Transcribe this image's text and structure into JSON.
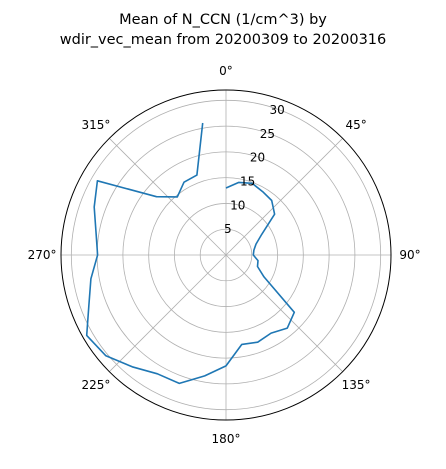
{
  "chart_data": {
    "type": "line",
    "projection": "polar",
    "title_lines": [
      "Mean of N_CCN (1/cm^3) by",
      "wdir_vec_mean from 20200309 to 20200316"
    ],
    "theta_direction": "clockwise",
    "theta_zero_location": "N",
    "theta_tick_labels": [
      "0°",
      "45°",
      "90°",
      "135°",
      "180°",
      "225°",
      "270°",
      "315°"
    ],
    "r_ticks": [
      5,
      10,
      15,
      20,
      25,
      30
    ],
    "r_tick_labels": [
      "5",
      "10",
      "15",
      "20",
      "25",
      "30"
    ],
    "r_lim": [
      0,
      32
    ],
    "grid": true,
    "series": [
      {
        "color": "#1f77b4",
        "theta_deg": [
          0,
          10,
          20,
          30,
          40,
          50,
          60,
          70,
          80,
          90,
          100,
          110,
          120,
          130,
          140,
          150,
          160,
          170,
          180,
          190,
          200,
          210,
          220,
          230,
          240,
          250,
          260,
          270,
          280,
          290,
          300,
          310,
          320,
          330,
          340,
          350
        ],
        "r": [
          13,
          14.3,
          14.8,
          14.2,
          13.8,
          12.3,
          8.0,
          6.2,
          5.5,
          5.3,
          6.3,
          6.5,
          8.5,
          17.3,
          18.5,
          17.5,
          18.0,
          17.6,
          21.5,
          23.8,
          26.5,
          26.6,
          28.3,
          30.4,
          31.2,
          28.3,
          26.6,
          24.9,
          25.6,
          27.2,
          28.8,
          17.6,
          14.7,
          16.3,
          16.5,
          26.0
        ]
      }
    ]
  }
}
